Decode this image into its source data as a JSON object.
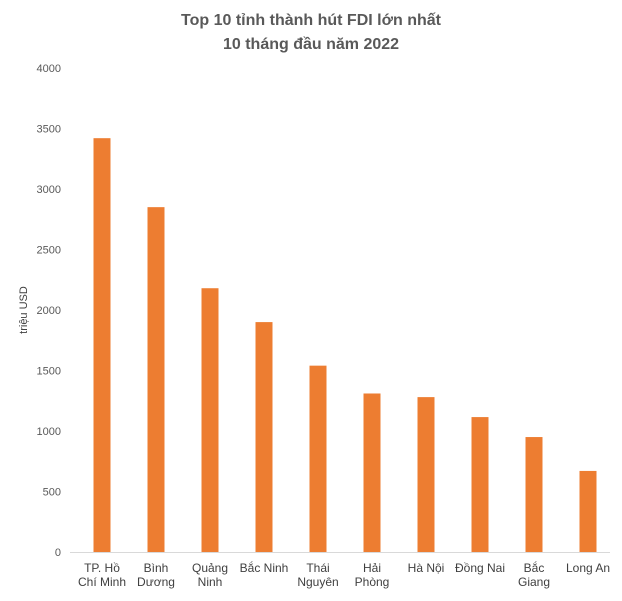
{
  "chart_data": {
    "type": "bar",
    "title": [
      "Top 10 tỉnh thành hút FDI lớn nhất",
      "10 tháng đầu năm 2022"
    ],
    "xlabel": "",
    "ylabel": "triệu USD",
    "categories": [
      [
        "TP. Hồ",
        "Chí Minh"
      ],
      [
        "Bình",
        "Dương"
      ],
      [
        "Quảng",
        "Ninh"
      ],
      [
        "Bắc Ninh"
      ],
      [
        "Thái",
        "Nguyên"
      ],
      [
        "Hải",
        "Phòng"
      ],
      [
        "Hà Nội"
      ],
      [
        "Đồng Nai"
      ],
      [
        "Bắc",
        "Giang"
      ],
      [
        "Long An"
      ]
    ],
    "values": [
      3420,
      2850,
      2180,
      1900,
      1540,
      1310,
      1280,
      1115,
      950,
      670
    ],
    "ylim": [
      0,
      4000
    ],
    "yticks": [
      0,
      500,
      1000,
      1500,
      2000,
      2500,
      3000,
      3500,
      4000
    ],
    "grid": false,
    "legend": "none",
    "bar_color": "#ED7D31"
  }
}
